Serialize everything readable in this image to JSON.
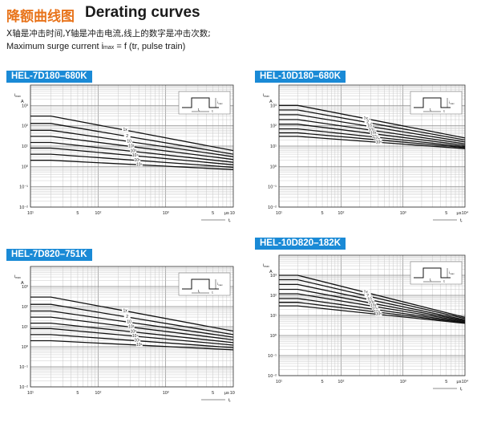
{
  "header": {
    "title_cn": "降额曲线图",
    "title_en": "Derating curves",
    "desc_cn": "X轴是冲击时间,Y轴是冲击电流,线上的数字是冲击次数;",
    "desc_en_prefix": "Maximum surge current i",
    "desc_en_sub": "max",
    "desc_en_suffix": " = f (tr, pulse train)"
  },
  "inset": {
    "tr_label": "t",
    "tr_sub": "r",
    "t_label": "t",
    "imax_label": "i",
    "imax_sub": "max"
  },
  "axis": {
    "y_unit": "A",
    "x_unit": "μs",
    "x_symbol": "t",
    "x_sub": "r",
    "y_symbol": "i",
    "y_sub": "max"
  },
  "panels": [
    {
      "title": "HEL-7D180–680K"
    },
    {
      "title": "HEL-10D180–680K"
    },
    {
      "title": "HEL-7D820–751K"
    },
    {
      "title": "HEL-10D820–182K"
    }
  ],
  "chart_data": [
    {
      "type": "line",
      "title": "HEL-7D180–680K",
      "xlabel": "tr",
      "ylabel": "imax",
      "x_unit": "μs",
      "y_unit": "A",
      "xscale": "log",
      "yscale": "log",
      "xlim": [
        10,
        10000
      ],
      "ylim": [
        0.01,
        10000
      ],
      "x_ticks": [
        "10¹",
        "5",
        "10²",
        "10³",
        "5",
        "μs",
        "10⁴"
      ],
      "y_ticks": [
        "10³",
        "10²",
        "10¹",
        "10⁰",
        "10⁻¹",
        "10⁻²"
      ],
      "grid": true,
      "series": [
        {
          "name": "1x",
          "points": [
            [
              10,
              300
            ],
            [
              20,
              300
            ],
            [
              10000,
              6
            ]
          ]
        },
        {
          "name": "2",
          "points": [
            [
              10,
              130
            ],
            [
              20,
              130
            ],
            [
              10000,
              4
            ]
          ]
        },
        {
          "name": "10",
          "points": [
            [
              10,
              60
            ],
            [
              20,
              60
            ],
            [
              10000,
              3
            ]
          ]
        },
        {
          "name": "10²",
          "points": [
            [
              10,
              30
            ],
            [
              20,
              30
            ],
            [
              10000,
              2.2
            ]
          ]
        },
        {
          "name": "10³",
          "points": [
            [
              10,
              15
            ],
            [
              20,
              15
            ],
            [
              10000,
              1.6
            ]
          ]
        },
        {
          "name": "10⁴",
          "points": [
            [
              10,
              8
            ],
            [
              20,
              8
            ],
            [
              10000,
              1.2
            ]
          ]
        },
        {
          "name": "10⁵",
          "points": [
            [
              10,
              4
            ],
            [
              20,
              4
            ],
            [
              10000,
              0.9
            ]
          ]
        },
        {
          "name": "10⁶",
          "points": [
            [
              10,
              2
            ],
            [
              20,
              2
            ],
            [
              10000,
              0.7
            ]
          ]
        }
      ]
    },
    {
      "type": "line",
      "title": "HEL-10D180–680K",
      "xlabel": "tr",
      "ylabel": "imax",
      "x_unit": "μs",
      "y_unit": "A",
      "xscale": "log",
      "yscale": "log",
      "xlim": [
        10,
        10000
      ],
      "ylim": [
        0.01,
        10000
      ],
      "x_ticks": [
        "10¹",
        "5",
        "10²",
        "10³",
        "5",
        "μs",
        "10⁴"
      ],
      "y_ticks": [
        "10³",
        "10²",
        "10¹",
        "10⁰",
        "10⁻¹",
        "10⁻²"
      ],
      "grid": true,
      "series": [
        {
          "name": "1x",
          "points": [
            [
              10,
              1000
            ],
            [
              20,
              1000
            ],
            [
              10000,
              25
            ]
          ]
        },
        {
          "name": "2",
          "points": [
            [
              10,
              600
            ],
            [
              20,
              600
            ],
            [
              10000,
              20
            ]
          ]
        },
        {
          "name": "10",
          "points": [
            [
              10,
              350
            ],
            [
              20,
              350
            ],
            [
              10000,
              16
            ]
          ]
        },
        {
          "name": "10²",
          "points": [
            [
              10,
              200
            ],
            [
              20,
              200
            ],
            [
              10000,
              13
            ]
          ]
        },
        {
          "name": "10³",
          "points": [
            [
              10,
              120
            ],
            [
              20,
              120
            ],
            [
              10000,
              11
            ]
          ]
        },
        {
          "name": "10⁴",
          "points": [
            [
              10,
              70
            ],
            [
              20,
              70
            ],
            [
              10000,
              9.5
            ]
          ]
        },
        {
          "name": "10⁵",
          "points": [
            [
              10,
              45
            ],
            [
              20,
              45
            ],
            [
              10000,
              8.5
            ]
          ]
        },
        {
          "name": "10⁶",
          "points": [
            [
              10,
              30
            ],
            [
              20,
              30
            ],
            [
              10000,
              7.5
            ]
          ]
        }
      ]
    },
    {
      "type": "line",
      "title": "HEL-7D820–751K",
      "xlabel": "tr",
      "ylabel": "imax",
      "x_unit": "μs",
      "y_unit": "A",
      "xscale": "log",
      "yscale": "log",
      "xlim": [
        10,
        10000
      ],
      "ylim": [
        0.01,
        10000
      ],
      "x_ticks": [
        "10¹",
        "5",
        "10²",
        "10³",
        "5",
        "μs",
        "10⁴"
      ],
      "y_ticks": [
        "10³",
        "10²",
        "10¹",
        "10⁰",
        "10⁻¹",
        "10⁻²"
      ],
      "grid": true,
      "series": [
        {
          "name": "1x",
          "points": [
            [
              10,
              300
            ],
            [
              20,
              300
            ],
            [
              10000,
              6
            ]
          ]
        },
        {
          "name": "2",
          "points": [
            [
              10,
              130
            ],
            [
              20,
              130
            ],
            [
              10000,
              4
            ]
          ]
        },
        {
          "name": "10",
          "points": [
            [
              10,
              60
            ],
            [
              20,
              60
            ],
            [
              10000,
              3
            ]
          ]
        },
        {
          "name": "10²",
          "points": [
            [
              10,
              30
            ],
            [
              20,
              30
            ],
            [
              10000,
              2.2
            ]
          ]
        },
        {
          "name": "10³",
          "points": [
            [
              10,
              15
            ],
            [
              20,
              15
            ],
            [
              10000,
              1.6
            ]
          ]
        },
        {
          "name": "10⁴",
          "points": [
            [
              10,
              8
            ],
            [
              20,
              8
            ],
            [
              10000,
              1.2
            ]
          ]
        },
        {
          "name": "10⁵",
          "points": [
            [
              10,
              4
            ],
            [
              20,
              4
            ],
            [
              10000,
              0.9
            ]
          ]
        },
        {
          "name": "10⁶",
          "points": [
            [
              10,
              2
            ],
            [
              20,
              2
            ],
            [
              10000,
              0.7
            ]
          ]
        }
      ]
    },
    {
      "type": "line",
      "title": "HEL-10D820–182K",
      "xlabel": "tr",
      "ylabel": "imax",
      "x_unit": "μs",
      "y_unit": "A",
      "xscale": "log",
      "yscale": "log",
      "xlim": [
        10,
        10000
      ],
      "ylim": [
        0.01,
        10000
      ],
      "x_ticks": [
        "10¹",
        "5",
        "10²",
        "10³",
        "5",
        "μs",
        "10⁴"
      ],
      "y_ticks": [
        "10³",
        "10²",
        "10¹",
        "10⁰",
        "10⁻¹",
        "10⁻²"
      ],
      "grid": true,
      "series": [
        {
          "name": "1x",
          "points": [
            [
              10,
              1000
            ],
            [
              20,
              1000
            ],
            [
              10000,
              8
            ]
          ]
        },
        {
          "name": "2",
          "points": [
            [
              10,
              600
            ],
            [
              20,
              600
            ],
            [
              10000,
              7
            ]
          ]
        },
        {
          "name": "10",
          "points": [
            [
              10,
              350
            ],
            [
              20,
              350
            ],
            [
              10000,
              6
            ]
          ]
        },
        {
          "name": "10²",
          "points": [
            [
              10,
              200
            ],
            [
              20,
              200
            ],
            [
              10000,
              5.5
            ]
          ]
        },
        {
          "name": "10³",
          "points": [
            [
              10,
              120
            ],
            [
              20,
              120
            ],
            [
              10000,
              5
            ]
          ]
        },
        {
          "name": "10⁴",
          "points": [
            [
              10,
              70
            ],
            [
              20,
              70
            ],
            [
              10000,
              4.6
            ]
          ]
        },
        {
          "name": "10⁵",
          "points": [
            [
              10,
              45
            ],
            [
              20,
              45
            ],
            [
              10000,
              4.3
            ]
          ]
        },
        {
          "name": "10⁶",
          "points": [
            [
              10,
              30
            ],
            [
              20,
              30
            ],
            [
              10000,
              4
            ]
          ]
        }
      ]
    }
  ]
}
